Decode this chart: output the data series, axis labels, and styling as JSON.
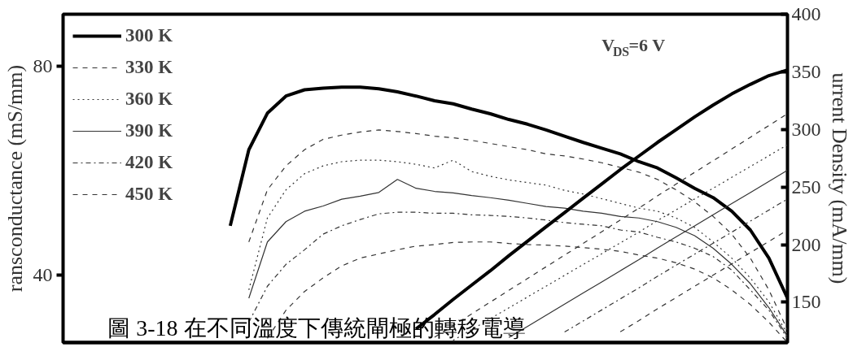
{
  "chart_data": {
    "type": "line",
    "ylabel": "ransconductance (mS/mm)",
    "y2label": "urrent Density (mA/mm)",
    "annotations": [
      "V$_{DS}$=6 V",
      "圖 3-18 在不同溫度下傳統閘極的轉移電導"
    ],
    "categories": [
      null,
      null,
      null,
      null,
      null,
      null,
      null,
      null,
      null,
      null,
      null,
      null,
      null,
      null,
      null,
      null,
      null,
      null,
      null,
      null,
      null,
      null,
      null,
      null,
      null,
      null,
      null,
      null,
      null,
      null,
      null,
      null,
      null,
      null,
      null,
      null,
      null,
      null,
      null,
      null
    ],
    "ylim": [
      27,
      90
    ],
    "yticks": [
      40,
      80
    ],
    "y2lim": [
      115,
      400
    ],
    "y2ticks": [
      150,
      200,
      250,
      300,
      350,
      400
    ],
    "grid": false,
    "legend": "top left",
    "series": [
      {
        "name": "300 K",
        "color": "#000000",
        "line_style": "solid",
        "values": [
          null,
          null,
          null,
          null,
          null,
          null,
          null,
          null,
          null,
          49.4,
          64,
          71,
          74.3,
          75.5,
          75.8,
          76,
          76,
          75.7,
          75.1,
          74.3,
          73.4,
          72.8,
          71.8,
          70.9,
          69.8,
          68.9,
          67.8,
          66.6,
          65.4,
          64.3,
          63.2,
          61.7,
          60.5,
          58.6,
          56.6,
          54.8,
          52.2,
          48.6,
          43.2,
          35.5
        ]
      },
      {
        "name": "330 K",
        "color": "#333333",
        "line_style": "dashed",
        "values": [
          null,
          null,
          null,
          null,
          null,
          null,
          null,
          null,
          null,
          null,
          46.3,
          56.3,
          60.9,
          64,
          66,
          66.8,
          67.4,
          67.8,
          67.5,
          67.1,
          66.6,
          66.3,
          65.8,
          65.2,
          64.6,
          64,
          63.2,
          62.8,
          62.2,
          61.5,
          60.6,
          59.7,
          58.3,
          56.3,
          54,
          51.2,
          47.8,
          43.2,
          37.1,
          29.4
        ]
      },
      {
        "name": "360 K",
        "color": "#333333",
        "line_style": "dotted",
        "values": [
          null,
          null,
          null,
          null,
          null,
          null,
          null,
          null,
          null,
          null,
          37.1,
          50.9,
          56.3,
          59.4,
          60.9,
          61.7,
          62,
          62,
          61.7,
          61.2,
          60.5,
          62,
          59.8,
          58.9,
          58.2,
          57.7,
          57.2,
          56.2,
          55.5,
          54.6,
          53.7,
          52.8,
          52.2,
          50.9,
          49.1,
          46.3,
          43.2,
          39.4,
          34.8,
          28.6
        ]
      },
      {
        "name": "390 K",
        "color": "#333333",
        "line_style": "solid",
        "values": [
          null,
          null,
          null,
          null,
          null,
          null,
          null,
          null,
          null,
          null,
          35.5,
          46.3,
          50.2,
          52.2,
          53.2,
          54.5,
          55.1,
          55.8,
          58.3,
          56.6,
          56,
          55.7,
          55.2,
          54.8,
          54.3,
          53.7,
          53.1,
          52.8,
          52.2,
          51.8,
          51.2,
          50.9,
          50.2,
          49.1,
          47.5,
          45.1,
          42,
          38.3,
          33.7,
          28.2
        ]
      },
      {
        "name": "420 K",
        "color": "#333333",
        "line_style": "dashdot",
        "values": [
          null,
          null,
          null,
          null,
          null,
          null,
          null,
          null,
          null,
          null,
          30.9,
          37.8,
          42,
          44.8,
          47.8,
          49.4,
          50.6,
          51.7,
          52,
          52,
          51.8,
          51.8,
          51.5,
          51.4,
          51.2,
          50.9,
          50.5,
          50,
          49.7,
          49.4,
          48.6,
          48.2,
          47.2,
          46.3,
          45.1,
          43.5,
          40.9,
          37.1,
          33.2,
          27.8
        ]
      },
      {
        "name": "450 K",
        "color": "#333333",
        "line_style": "dashed",
        "values": [
          null,
          null,
          null,
          null,
          null,
          null,
          null,
          null,
          null,
          null,
          null,
          27.8,
          33.2,
          36.8,
          39.4,
          41.7,
          43.2,
          44,
          44.8,
          45.5,
          45.8,
          46.2,
          46.3,
          46.3,
          46,
          45.8,
          45.7,
          45.5,
          45.2,
          44.9,
          44.5,
          43.8,
          43.2,
          42.3,
          41.1,
          39.4,
          37.1,
          34.3,
          30.9,
          27
        ]
      },
      {
        "color": "#000000",
        "axis": "y2",
        "line_style": "solid",
        "values": [
          null,
          null,
          null,
          null,
          null,
          null,
          null,
          null,
          null,
          null,
          null,
          null,
          null,
          null,
          null,
          null,
          null,
          null,
          null,
          126.8,
          139.3,
          152.4,
          164.9,
          177.3,
          190.4,
          202.9,
          215.4,
          227.8,
          240.3,
          252.7,
          265.1,
          276.9,
          288.7,
          299.7,
          310.8,
          321.2,
          330.8,
          339.1,
          346.7,
          351.6
        ]
      },
      {
        "color": "#333333",
        "axis": "y2",
        "line_style": "dashed",
        "values": [
          null,
          null,
          null,
          null,
          null,
          null,
          null,
          null,
          null,
          null,
          null,
          null,
          null,
          null,
          null,
          null,
          null,
          null,
          null,
          null,
          119.6,
          129.7,
          139.9,
          150.1,
          160.3,
          170.5,
          180.7,
          190.9,
          201,
          211.2,
          221.4,
          231.6,
          242.3,
          252.5,
          262.7,
          272.8,
          283,
          293.2,
          303.4,
          313.6
        ]
      },
      {
        "color": "#333333",
        "axis": "y2",
        "line_style": "dotted",
        "values": [
          null,
          null,
          null,
          null,
          null,
          null,
          null,
          null,
          null,
          null,
          null,
          null,
          null,
          null,
          null,
          null,
          null,
          null,
          null,
          null,
          null,
          116.9,
          126.3,
          135.7,
          145.1,
          154.5,
          163.9,
          173.3,
          182.7,
          192.1,
          201.5,
          210.9,
          220.8,
          230.2,
          239.6,
          249,
          258.4,
          267.8,
          277.2,
          286.6
        ]
      },
      {
        "color": "#333333",
        "axis": "y2",
        "line_style": "solid",
        "values": [
          null,
          null,
          null,
          null,
          null,
          null,
          null,
          null,
          null,
          null,
          null,
          null,
          null,
          null,
          null,
          null,
          null,
          null,
          null,
          null,
          null,
          null,
          null,
          null,
          119.4,
          129,
          138.7,
          148.3,
          158,
          167.6,
          177.3,
          186.9,
          197,
          206.7,
          216.3,
          226,
          235.6,
          245.2,
          254.9,
          264.5
        ]
      },
      {
        "color": "#333333",
        "axis": "y2",
        "line_style": "dashdot",
        "values": [
          null,
          null,
          null,
          null,
          null,
          null,
          null,
          null,
          null,
          null,
          null,
          null,
          null,
          null,
          null,
          null,
          null,
          null,
          null,
          null,
          null,
          null,
          null,
          null,
          null,
          null,
          null,
          124.1,
          133.7,
          143.3,
          152.9,
          162.4,
          172.5,
          182.1,
          191.7,
          201.2,
          210.8,
          220.4,
          230,
          239.6
        ]
      },
      {
        "color": "#333333",
        "axis": "y2",
        "line_style": "dashed",
        "values": [
          null,
          null,
          null,
          null,
          null,
          null,
          null,
          null,
          null,
          null,
          null,
          null,
          null,
          null,
          null,
          null,
          null,
          null,
          null,
          null,
          null,
          null,
          null,
          null,
          null,
          null,
          null,
          null,
          null,
          null,
          124.3,
          134,
          144.3,
          154,
          163.8,
          173.5,
          183.3,
          193,
          202.8,
          212.6
        ]
      }
    ]
  }
}
